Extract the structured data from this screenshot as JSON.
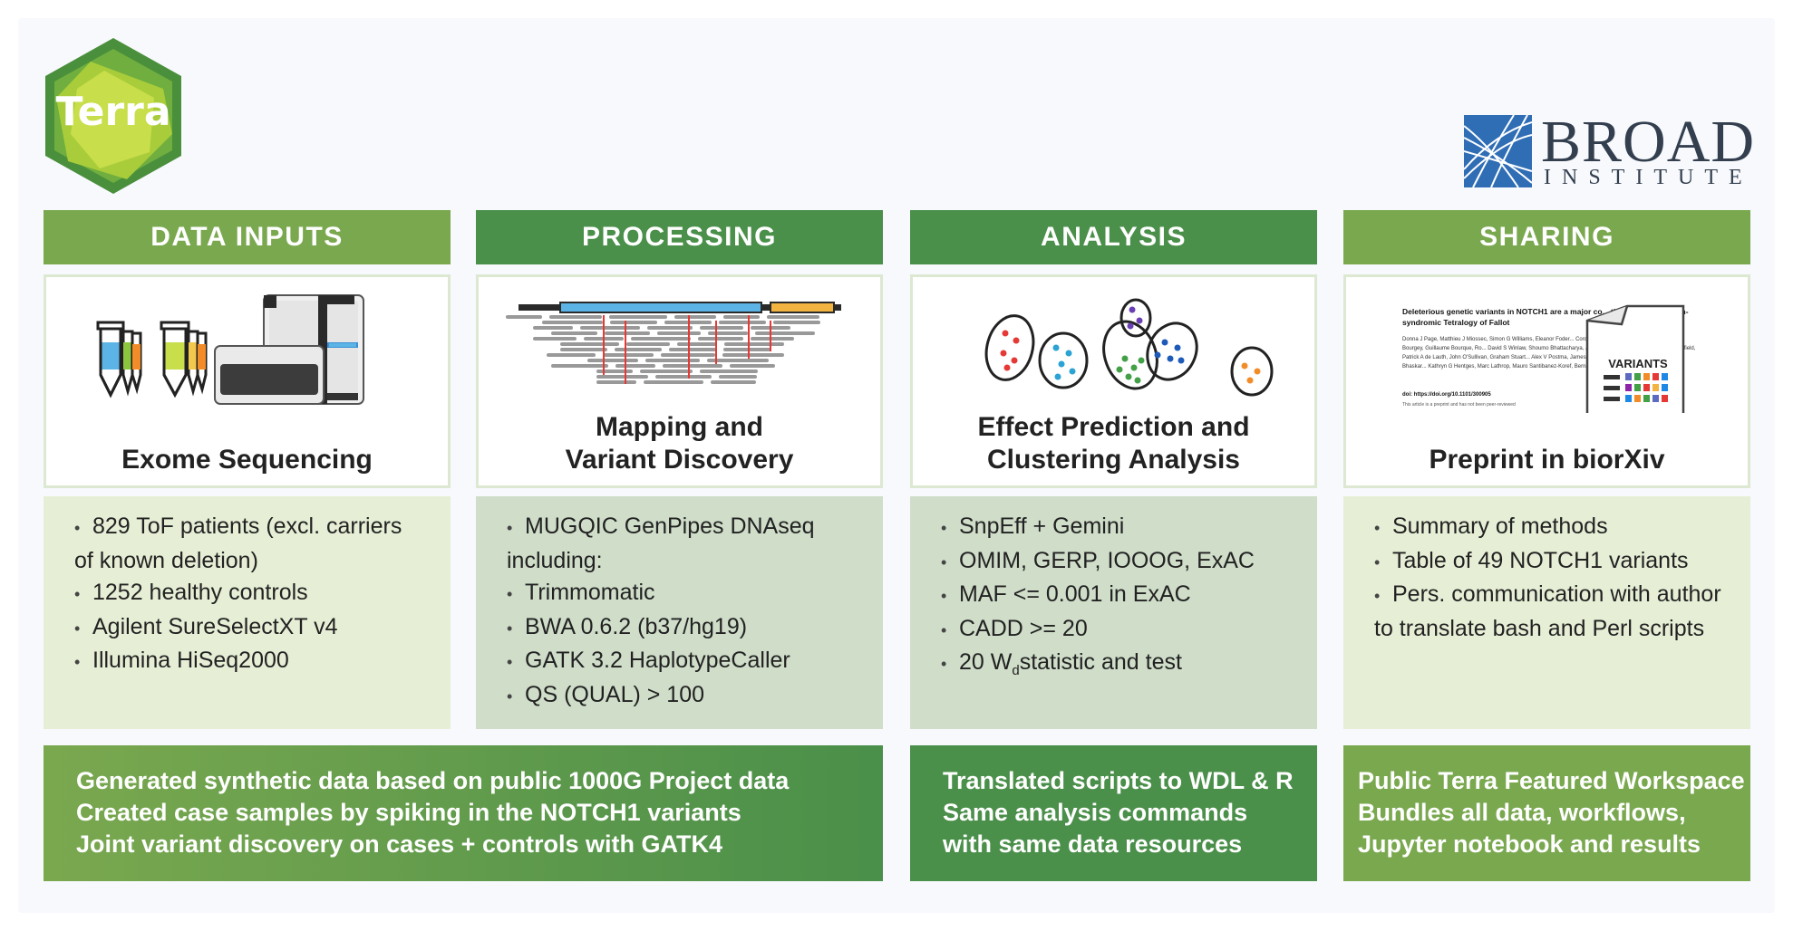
{
  "logos": {
    "terra": "Terra",
    "broad_main": "BROAD",
    "broad_sub": "INSTITUTE"
  },
  "columns": [
    {
      "header": "DATA INPUTS",
      "caption": [
        "Exome Sequencing"
      ],
      "items": [
        "829 ToF patients (excl. carriers of known deletion)",
        "1252 healthy controls",
        "Agilent SureSelectXT v4",
        "Illumina HiSeq2000"
      ]
    },
    {
      "header": "PROCESSING",
      "caption": [
        "Mapping and",
        "Variant Discovery"
      ],
      "items": [
        "MUGQIC GenPipes DNAseq including:",
        "Trimmomatic",
        "BWA 0.6.2 (b37/hg19)",
        "GATK 3.2 HaplotypeCaller",
        "QS (QUAL) > 100"
      ]
    },
    {
      "header": "ANALYSIS",
      "caption": [
        "Effect Prediction and",
        "Clustering Analysis"
      ],
      "items": [
        "SnpEff + Gemini",
        "OMIM, GERP, IOOOG, ExAC",
        "MAF  <= 0.001 in ExAC",
        "CADD >= 20",
        {
          "pre": "20 W",
          "sub": "d",
          "post": "statistic and test"
        }
      ]
    },
    {
      "header": "SHARING",
      "caption": [
        "Preprint in biorXiv"
      ],
      "items": [
        "Summary of methods",
        "Table of 49 NOTCH1 variants",
        "Pers. communication with author to translate bash and Perl scripts"
      ]
    }
  ],
  "preprint": {
    "title": "Deleterious genetic variants in NOTCH1 are a major co... the incidence of non-syndromic Tetralogy of Fallot",
    "authors": "Donna J Page, Matthieu J Miossec, Simon G Williams, Eleanor Foder... Cordell, Louise Sutcliffe, Ana Topf, Mathieu Bourgey, Guillaume Bourque, Ro... David S Winlaw, Shoumo Bhattacharya, Jamie Breckpot, Koenraad... Kerry Setchfield, Patrick A de Lauth, John O'Sullivan, Graham Stuart... Alex V Postma, James R Bentham, Martin Baron, Stephen S Bhaskar... Kathryn G Hentges, Marc Lathrop, Mauro Santibanez-Koref, Berna...",
    "doi": "doi: https://doi.org/10.1101/300905",
    "note": "This article is a preprint and has not been peer-reviewed",
    "variants_label": "VARIANTS"
  },
  "footers": [
    [
      "Generated synthetic data based on public 1000G Project data",
      "Created case samples by spiking in the NOTCH1 variants",
      "Joint variant discovery on cases + controls with GATK4"
    ],
    [
      "Translated scripts to WDL & R",
      "Same analysis commands",
      "with same data resources"
    ],
    [
      "Public Terra Featured Workspace",
      "Bundles all data, workflows,",
      "Jupyter notebook and results"
    ]
  ],
  "colors": {
    "light_green": "#7aa84f",
    "dark_green": "#4a8f4a",
    "light_bg": "#e6efd6",
    "grey_bg": "#cfddc9",
    "broad_blue": "#2f6db5",
    "broad_text": "#333f4f"
  }
}
